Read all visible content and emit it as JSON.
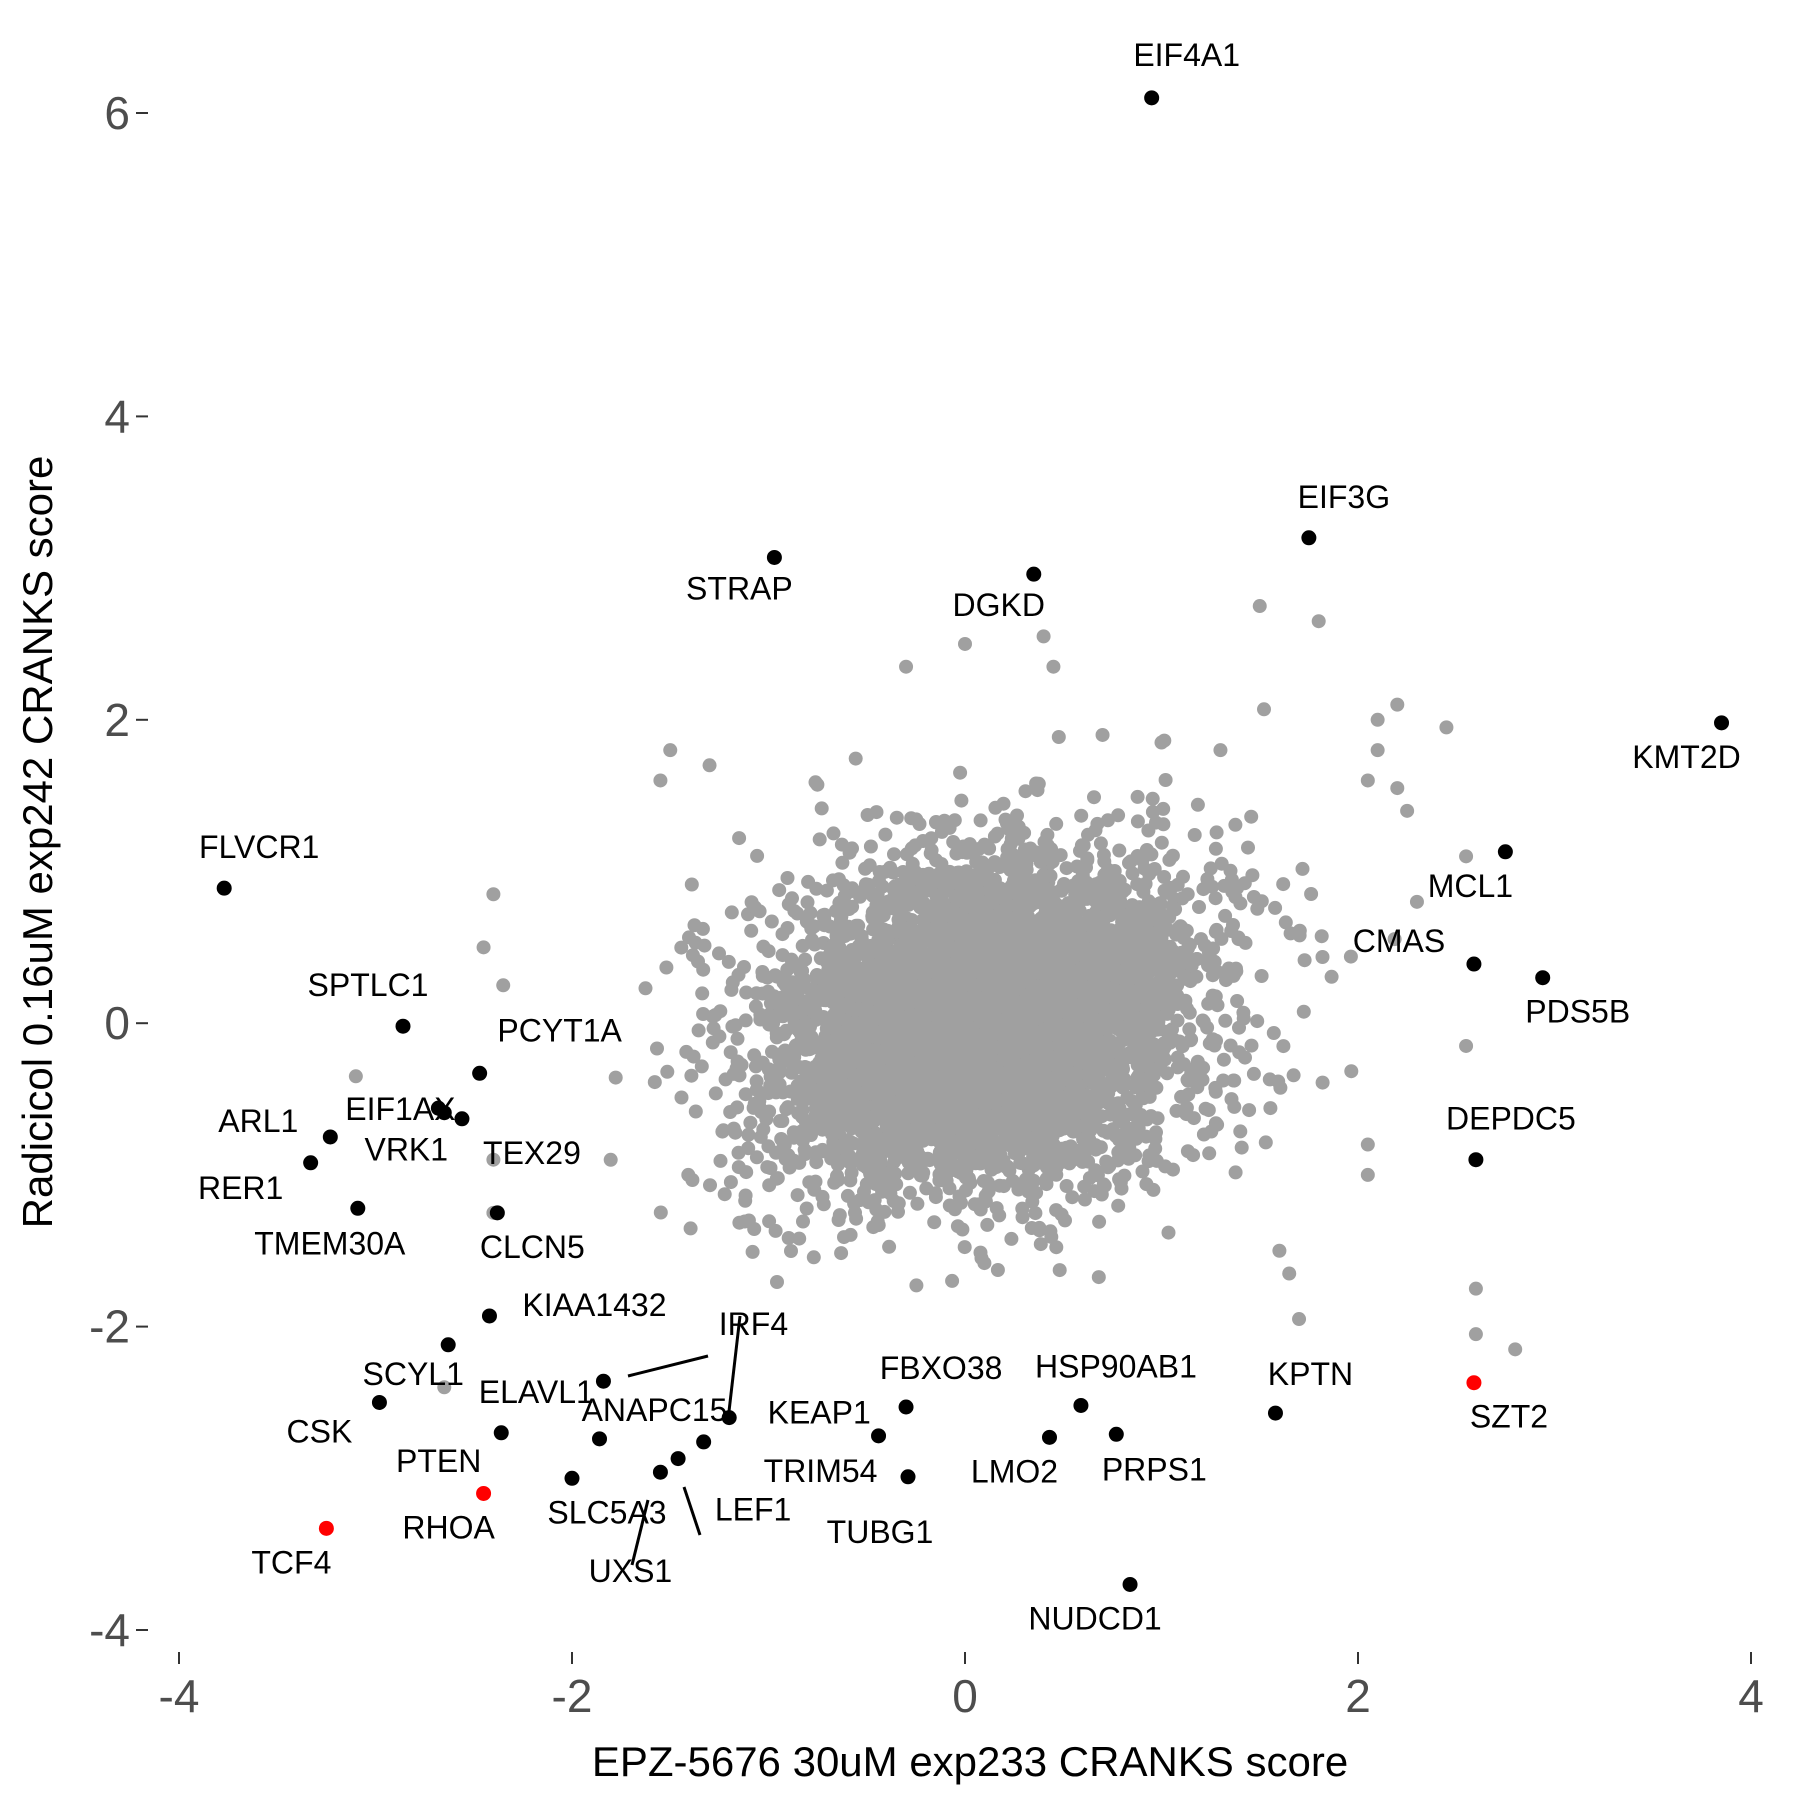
{
  "chart_data": {
    "type": "scatter",
    "title": "",
    "xlabel": "EPZ-5676 30uM exp233 CRANKS score",
    "ylabel": "Radicicol 0.16uM exp242 CRANKS score",
    "xlim": [
      -4.05,
      4.05
    ],
    "ylim": [
      -4.05,
      6.35
    ],
    "xticks": [
      -4,
      -2,
      0,
      2,
      4
    ],
    "yticks": [
      -4,
      -2,
      0,
      2,
      4,
      6
    ],
    "xtick_labels": [
      "-4",
      "-2",
      "0",
      "2",
      "4"
    ],
    "ytick_labels": [
      "-4",
      "-2",
      "0",
      "2",
      "4",
      "6"
    ],
    "grid": false,
    "legend": "none",
    "colors": {
      "background_genes": "#a0a0a0",
      "highlighted": "#000000",
      "reference_genes": "#ff0000"
    },
    "background_cloud": {
      "description_of_points": "several thousand unlabeled genes, roughly bivariate normal",
      "center": [
        0.1,
        0.0
      ],
      "sd": [
        0.55,
        0.55
      ],
      "correlation": 0.2,
      "outliers": [
        [
          1.5,
          2.75
        ],
        [
          1.8,
          2.65
        ],
        [
          0.0,
          2.5
        ],
        [
          -0.3,
          2.35
        ],
        [
          0.4,
          2.55
        ],
        [
          0.45,
          2.35
        ],
        [
          2.2,
          2.1
        ],
        [
          2.1,
          2.0
        ],
        [
          2.45,
          1.95
        ],
        [
          2.1,
          1.8
        ],
        [
          2.05,
          1.6
        ],
        [
          -1.5,
          1.8
        ],
        [
          -1.3,
          1.7
        ],
        [
          -1.55,
          1.6
        ],
        [
          2.2,
          1.55
        ],
        [
          2.25,
          1.4
        ],
        [
          2.55,
          1.1
        ],
        [
          2.3,
          0.8
        ],
        [
          2.55,
          -0.15
        ],
        [
          2.05,
          -0.8
        ],
        [
          2.05,
          -1.0
        ],
        [
          1.6,
          -1.5
        ],
        [
          1.65,
          -1.65
        ],
        [
          1.7,
          -1.95
        ],
        [
          2.6,
          -1.75
        ],
        [
          2.6,
          -2.05
        ],
        [
          2.8,
          -2.15
        ],
        [
          -2.4,
          0.85
        ],
        [
          -2.45,
          0.5
        ],
        [
          -2.35,
          0.25
        ],
        [
          -3.1,
          -0.35
        ],
        [
          -2.4,
          -0.9
        ],
        [
          -2.4,
          -1.25
        ],
        [
          -2.65,
          -2.4
        ],
        [
          1.0,
          1.85
        ],
        [
          1.3,
          1.8
        ],
        [
          0.7,
          1.9
        ]
      ]
    },
    "labeled_points": [
      {
        "name": "EIF4A1",
        "x": 0.95,
        "y": 6.1,
        "color": "#000000"
      },
      {
        "name": "EIF3G",
        "x": 1.75,
        "y": 3.2,
        "color": "#000000"
      },
      {
        "name": "STRAP",
        "x": -0.97,
        "y": 3.07,
        "color": "#000000"
      },
      {
        "name": "DGKD",
        "x": 0.35,
        "y": 2.96,
        "color": "#000000"
      },
      {
        "name": "KMT2D",
        "x": 3.85,
        "y": 1.98,
        "color": "#000000"
      },
      {
        "name": "MCL1",
        "x": 2.75,
        "y": 1.13,
        "color": "#000000"
      },
      {
        "name": "FLVCR1",
        "x": -3.77,
        "y": 0.89,
        "color": "#000000"
      },
      {
        "name": "CMAS",
        "x": 2.59,
        "y": 0.39,
        "color": "#000000"
      },
      {
        "name": "PDS5B",
        "x": 2.94,
        "y": 0.3,
        "color": "#000000"
      },
      {
        "name": "SPTLC1",
        "x": -2.86,
        "y": -0.02,
        "color": "#000000"
      },
      {
        "name": "PCYT1A",
        "x": -2.47,
        "y": -0.33,
        "color": "#000000"
      },
      {
        "name": "EIF1AX",
        "x": -2.68,
        "y": -0.56,
        "color": "#000000"
      },
      {
        "name": "TEX29",
        "x": -2.56,
        "y": -0.63,
        "color": "#000000"
      },
      {
        "name": "VRK1",
        "x": -2.65,
        "y": -0.59,
        "color": "#000000"
      },
      {
        "name": "ARL1",
        "x": -3.23,
        "y": -0.75,
        "color": "#000000"
      },
      {
        "name": "RER1",
        "x": -3.33,
        "y": -0.92,
        "color": "#000000"
      },
      {
        "name": "DEPDC5",
        "x": 2.6,
        "y": -0.9,
        "color": "#000000"
      },
      {
        "name": "TMEM30A",
        "x": -3.09,
        "y": -1.22,
        "color": "#000000"
      },
      {
        "name": "CLCN5",
        "x": -2.38,
        "y": -1.25,
        "color": "#000000"
      },
      {
        "name": "KIAA1432",
        "x": -2.42,
        "y": -1.93,
        "color": "#000000"
      },
      {
        "name": "SCYL1",
        "x": -2.63,
        "y": -2.12,
        "color": "#000000"
      },
      {
        "name": "KEAP1",
        "x": -1.2,
        "y": -2.6,
        "color": "#000000"
      },
      {
        "name": "IRF4",
        "x": -1.84,
        "y": -2.36,
        "color": "#000000"
      },
      {
        "name": "CSK",
        "x": -2.98,
        "y": -2.5,
        "color": "#000000"
      },
      {
        "name": "ELAVL1",
        "x": -2.36,
        "y": -2.7,
        "color": "#000000"
      },
      {
        "name": "ANAPC15",
        "x": -1.86,
        "y": -2.74,
        "color": "#000000"
      },
      {
        "name": "FBXO38",
        "x": -0.3,
        "y": -2.53,
        "color": "#000000"
      },
      {
        "name": "HSP90AB1",
        "x": 0.59,
        "y": -2.52,
        "color": "#000000"
      },
      {
        "name": "KPTN",
        "x": 1.58,
        "y": -2.57,
        "color": "#000000"
      },
      {
        "name": "SZT2",
        "x": 2.59,
        "y": -2.37,
        "color": "#ff0000"
      },
      {
        "name": "PTEN",
        "x": -1.33,
        "y": -2.76,
        "color": "#000000"
      },
      {
        "name": "TRIM54",
        "x": -0.44,
        "y": -2.72,
        "color": "#000000"
      },
      {
        "name": "LMO2",
        "x": 0.43,
        "y": -2.73,
        "color": "#000000"
      },
      {
        "name": "PRPS1",
        "x": 0.77,
        "y": -2.71,
        "color": "#000000"
      },
      {
        "name": "SLC5A3",
        "x": -2.0,
        "y": -3.0,
        "color": "#000000"
      },
      {
        "name": "LEF1",
        "x": -1.46,
        "y": -2.87,
        "color": "#000000"
      },
      {
        "name": "TUBG1",
        "x": -0.29,
        "y": -2.99,
        "color": "#000000"
      },
      {
        "name": "UXS1",
        "x": -1.55,
        "y": -2.96,
        "color": "#000000"
      },
      {
        "name": "RHOA",
        "x": -2.45,
        "y": -3.1,
        "color": "#ff0000"
      },
      {
        "name": "TCF4",
        "x": -3.25,
        "y": -3.33,
        "color": "#ff0000"
      },
      {
        "name": "NUDCD1",
        "x": 0.84,
        "y": -3.7,
        "color": "#000000"
      }
    ]
  }
}
